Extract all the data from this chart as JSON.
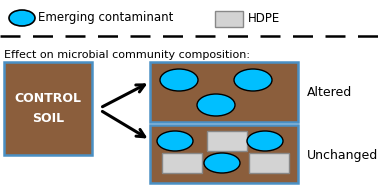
{
  "bg_color": "#ffffff",
  "soil_brown": "#8B5E3C",
  "soil_border": "#4a90c4",
  "contaminant_color": "#00BFFF",
  "contaminant_edge": "#000000",
  "hdpe_fill": "#d3d3d3",
  "hdpe_edge": "#888888",
  "legend_text1": "Emerging contaminant",
  "legend_text2": "HDPE",
  "subtitle": "Effect on microbial community composition:",
  "control_label1": "CONTROL",
  "control_label2": "SOIL",
  "altered_label": "Altered",
  "unchanged_label": "Unchanged"
}
